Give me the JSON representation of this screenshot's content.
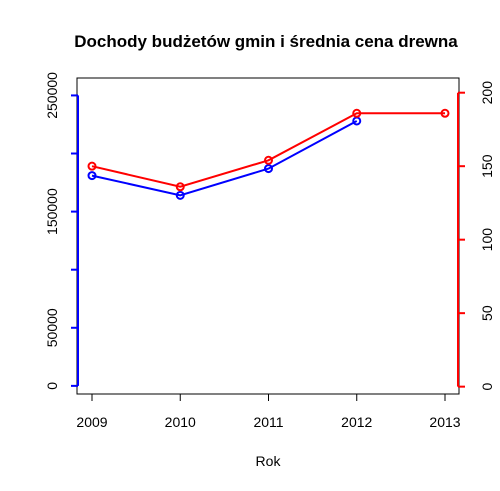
{
  "chart_data": {
    "type": "line",
    "title": "Dochody budżetów gmin i średnia cena drewna",
    "xlabel": "Rok",
    "ylabel_left": "",
    "ylabel_right": "",
    "x": [
      2009,
      2010,
      2011,
      2012,
      2013
    ],
    "left_axis": {
      "ylim": [
        -7000,
        265000
      ],
      "ticks": [
        0,
        50000,
        150000,
        250000
      ],
      "tick_labels": [
        "0",
        "50000",
        "150000",
        "250000"
      ],
      "color": "#0000ff"
    },
    "right_axis": {
      "ylim": [
        -5,
        210
      ],
      "ticks": [
        0,
        50,
        100,
        150,
        200
      ],
      "tick_labels": [
        "0",
        "50",
        "100",
        "150",
        "200"
      ],
      "color": "#ff0000"
    },
    "series": [
      {
        "axis": "left",
        "color": "#0000ff",
        "values": [
          181000,
          164000,
          187000,
          228000,
          null
        ],
        "x_range": [
          2009,
          2012
        ]
      },
      {
        "axis": "right",
        "color": "#ff0000",
        "values": [
          150,
          136,
          154,
          186,
          186
        ],
        "x_range": [
          2009,
          2013
        ]
      }
    ],
    "grid": false,
    "legend": "none"
  }
}
